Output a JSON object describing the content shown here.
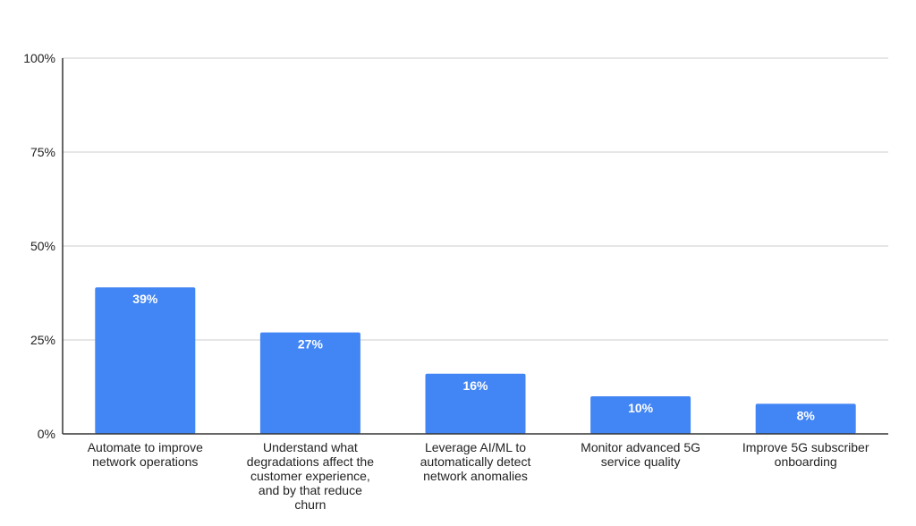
{
  "chart_data": {
    "type": "bar",
    "categories": [
      [
        "Automate to improve",
        "network operations"
      ],
      [
        "Understand what",
        "degradations affect the",
        "customer experience,",
        "and by that reduce",
        "churn"
      ],
      [
        "Leverage AI/ML to",
        "automatically detect",
        "network anomalies"
      ],
      [
        "Monitor advanced 5G",
        "service quality"
      ],
      [
        "Improve 5G subscriber",
        "onboarding"
      ]
    ],
    "values": [
      39,
      27,
      16,
      10,
      8
    ],
    "data_labels": [
      "39%",
      "27%",
      "16%",
      "10%",
      "8%"
    ],
    "yticks": [
      0,
      25,
      50,
      75,
      100
    ],
    "ytick_labels": [
      "0%",
      "25%",
      "50%",
      "75%",
      "100%"
    ],
    "ylim": [
      0,
      100
    ],
    "title": "",
    "xlabel": "",
    "ylabel": "",
    "grid": true,
    "legend": "none",
    "bar_color": "#4285f4",
    "grid_color": "#cccccc",
    "axis_color": "#333333"
  }
}
